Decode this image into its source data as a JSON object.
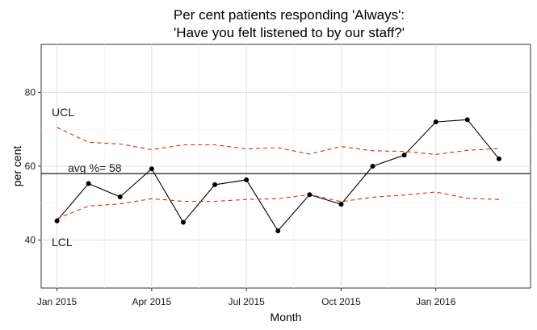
{
  "chart_data": {
    "type": "line",
    "title_line1": "Per cent patients responding 'Always':",
    "title_line2": "'Have you felt listened to by our staff?'",
    "xlabel": "Month",
    "ylabel": "per cent",
    "x": [
      "2015-01",
      "2015-02",
      "2015-03",
      "2015-04",
      "2015-05",
      "2015-06",
      "2015-07",
      "2015-08",
      "2015-09",
      "2015-10",
      "2015-11",
      "2015-12",
      "2016-01",
      "2016-02",
      "2016-03"
    ],
    "x_ticks": [
      {
        "label": "Jan 2015",
        "index": 0
      },
      {
        "label": "Apr 2015",
        "index": 3
      },
      {
        "label": "Jul 2015",
        "index": 6
      },
      {
        "label": "Oct 2015",
        "index": 9
      },
      {
        "label": "Jan 2016",
        "index": 12
      }
    ],
    "y_ticks": [
      40,
      60,
      80
    ],
    "ylim": [
      27,
      93
    ],
    "xlim": [
      -0.5,
      15
    ],
    "grid": true,
    "series": [
      {
        "values": [
          45.2,
          55.3,
          51.7,
          59.3,
          44.8,
          55.0,
          56.3,
          42.5,
          52.3,
          49.7,
          60.0,
          63.0,
          72.0,
          72.6,
          62.0
        ],
        "color": "#000000",
        "style": "solid",
        "markers": true
      },
      {
        "values": [
          70.5,
          66.5,
          66.0,
          64.5,
          65.8,
          65.8,
          64.7,
          65.0,
          63.3,
          65.3,
          64.2,
          64.0,
          63.2,
          64.3,
          64.8
        ],
        "color": "#d62728",
        "style": "dashed",
        "markers": false
      },
      {
        "values": [
          45.8,
          49.2,
          49.8,
          51.2,
          50.5,
          50.5,
          51.0,
          51.2,
          52.3,
          50.4,
          51.6,
          52.2,
          53.0,
          51.3,
          51.0
        ],
        "color": "#d62728",
        "style": "dashed",
        "markers": false
      }
    ],
    "average": 58,
    "annotations": {
      "avg_label": "avg %= 58",
      "ucl_label": "UCL",
      "lcl_label": "LCL"
    }
  }
}
